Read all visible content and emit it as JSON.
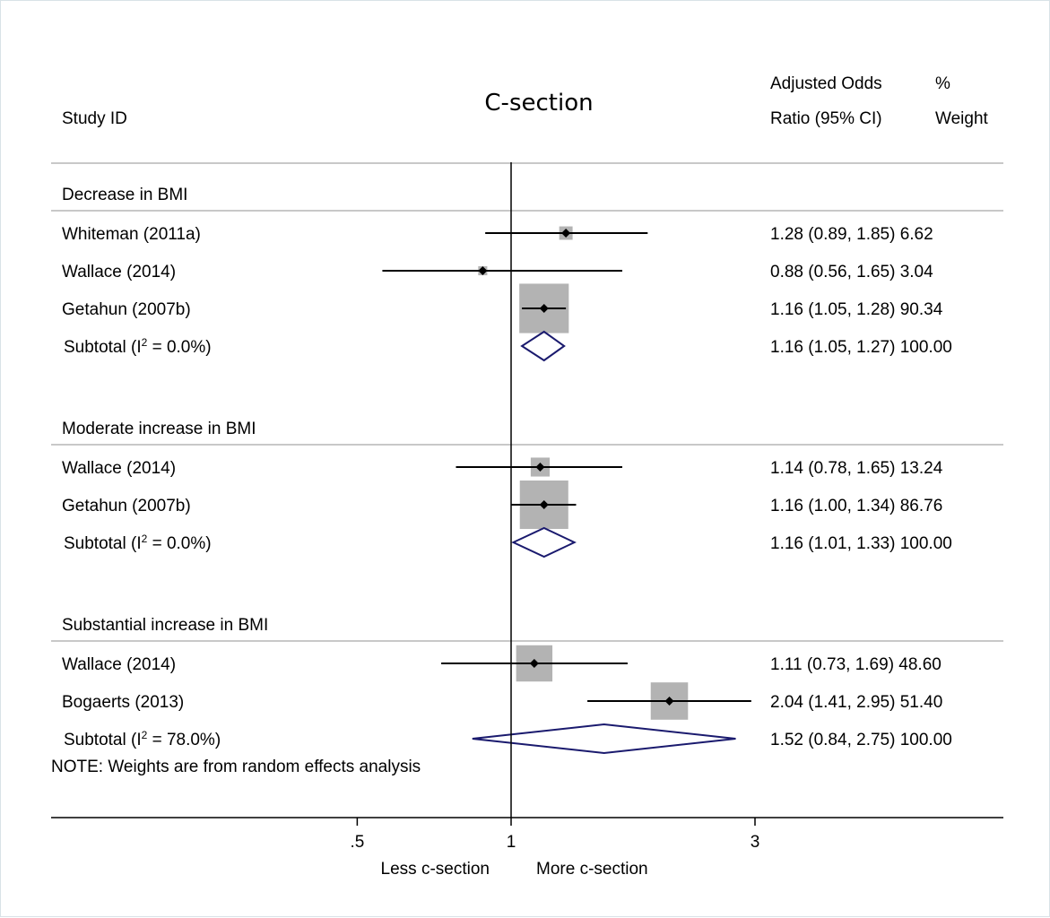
{
  "chart_data": {
    "type": "forest",
    "title": "C-section",
    "x_scale": "log",
    "null_value": 1,
    "xlim": [
      0.3,
      6.2
    ],
    "x_ticks": [
      {
        "value": 0.5,
        "label": ".5"
      },
      {
        "value": 1,
        "label": "1"
      },
      {
        "value": 3,
        "label": "3"
      }
    ],
    "x_direction_labels": {
      "left": "Less c-section",
      "right": "More c-section"
    },
    "headers": {
      "study": "Study ID",
      "or_line1": "Adjusted Odds",
      "or_line2": "Ratio (95% CI)",
      "weight_line1": "%",
      "weight_line2": "Weight"
    },
    "groups": [
      {
        "name": "Decrease in BMI",
        "studies": [
          {
            "label": "Whiteman (2011a)",
            "or": 1.28,
            "lo": 0.89,
            "hi": 1.85,
            "weight": 6.62,
            "text": "1.28 (0.89, 1.85) 6.62"
          },
          {
            "label": "Wallace (2014)",
            "or": 0.88,
            "lo": 0.56,
            "hi": 1.65,
            "weight": 3.04,
            "text": "0.88 (0.56, 1.65) 3.04"
          },
          {
            "label": "Getahun (2007b)",
            "or": 1.16,
            "lo": 1.05,
            "hi": 1.28,
            "weight": 90.34,
            "text": "1.16 (1.05, 1.28) 90.34"
          }
        ],
        "subtotal": {
          "label_prefix": "Subtotal  (I",
          "sup": "2",
          "label_suffix": " = 0.0%)",
          "or": 1.16,
          "lo": 1.05,
          "hi": 1.27,
          "weight": 100.0,
          "text": "1.16 (1.05, 1.27) 100.00"
        }
      },
      {
        "name": "Moderate increase in BMI",
        "studies": [
          {
            "label": "Wallace (2014)",
            "or": 1.14,
            "lo": 0.78,
            "hi": 1.65,
            "weight": 13.24,
            "text": "1.14 (0.78, 1.65) 13.24"
          },
          {
            "label": "Getahun (2007b)",
            "or": 1.16,
            "lo": 1.0,
            "hi": 1.34,
            "weight": 86.76,
            "text": "1.16 (1.00, 1.34) 86.76"
          }
        ],
        "subtotal": {
          "label_prefix": "Subtotal  (I",
          "sup": "2",
          "label_suffix": " = 0.0%)",
          "or": 1.16,
          "lo": 1.01,
          "hi": 1.33,
          "weight": 100.0,
          "text": "1.16 (1.01, 1.33) 100.00"
        }
      },
      {
        "name": "Substantial increase in BMI",
        "studies": [
          {
            "label": "Wallace (2014)",
            "or": 1.11,
            "lo": 0.73,
            "hi": 1.69,
            "weight": 48.6,
            "text": "1.11 (0.73, 1.69) 48.60"
          },
          {
            "label": "Bogaerts (2013)",
            "or": 2.04,
            "lo": 1.41,
            "hi": 2.95,
            "weight": 51.4,
            "text": "2.04 (1.41, 2.95) 51.40"
          }
        ],
        "subtotal": {
          "label_prefix": "Subtotal  (I",
          "sup": "2",
          "label_suffix": " = 78.0%)",
          "or": 1.52,
          "lo": 0.84,
          "hi": 2.75,
          "weight": 100.0,
          "text": "1.52 (0.84, 2.75) 100.00"
        }
      }
    ],
    "note": "NOTE: Weights are from random effects analysis",
    "colors": {
      "box": "#b3b3b3",
      "diamond": "#1a1a6e",
      "rule": "#c8c8c8",
      "line": "#000000"
    }
  }
}
